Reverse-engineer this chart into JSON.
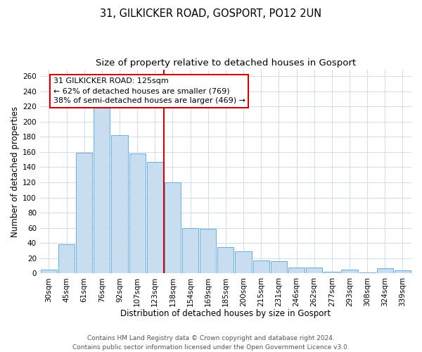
{
  "title": "31, GILKICKER ROAD, GOSPORT, PO12 2UN",
  "subtitle": "Size of property relative to detached houses in Gosport",
  "xlabel": "Distribution of detached houses by size in Gosport",
  "ylabel": "Number of detached properties",
  "bar_labels": [
    "30sqm",
    "45sqm",
    "61sqm",
    "76sqm",
    "92sqm",
    "107sqm",
    "123sqm",
    "138sqm",
    "154sqm",
    "169sqm",
    "185sqm",
    "200sqm",
    "215sqm",
    "231sqm",
    "246sqm",
    "262sqm",
    "277sqm",
    "293sqm",
    "308sqm",
    "324sqm",
    "339sqm"
  ],
  "bar_values": [
    5,
    38,
    159,
    218,
    182,
    158,
    147,
    120,
    60,
    59,
    35,
    29,
    17,
    16,
    8,
    8,
    2,
    5,
    1,
    7,
    4
  ],
  "bar_color": "#c9ddf0",
  "bar_edge_color": "#6aaed6",
  "vline_index": 6,
  "annotation_line1": "31 GILKICKER ROAD: 125sqm",
  "annotation_line2": "← 62% of detached houses are smaller (769)",
  "annotation_line3": "38% of semi-detached houses are larger (469) →",
  "vline_color": "#cc0000",
  "ylim": [
    0,
    268
  ],
  "yticks": [
    0,
    20,
    40,
    60,
    80,
    100,
    120,
    140,
    160,
    180,
    200,
    220,
    240,
    260
  ],
  "footer1": "Contains HM Land Registry data © Crown copyright and database right 2024.",
  "footer2": "Contains public sector information licensed under the Open Government Licence v3.0.",
  "bg_color": "#ffffff",
  "grid_color": "#ccd6e8",
  "title_fontsize": 10.5,
  "subtitle_fontsize": 9.5,
  "axis_label_fontsize": 8.5,
  "tick_fontsize": 7.5,
  "annotation_fontsize": 8,
  "footer_fontsize": 6.5
}
